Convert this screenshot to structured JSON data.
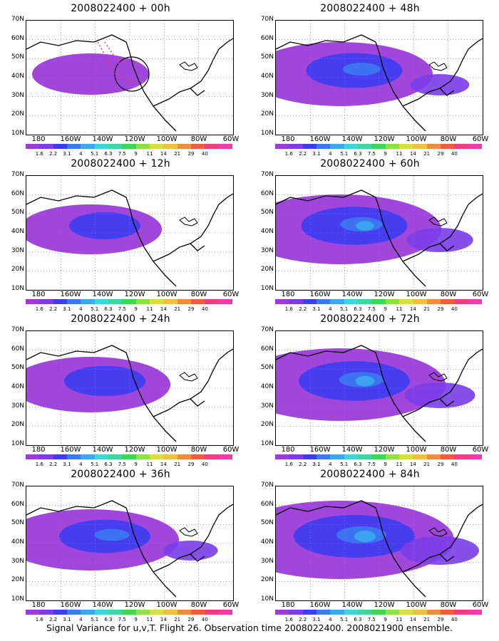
{
  "panels": [
    {
      "title": "2008022400 + 00h",
      "intensity": 0.35,
      "marker": true
    },
    {
      "title": "2008022400 + 48h",
      "intensity": 0.75,
      "marker": false
    },
    {
      "title": "2008022400 + 12h",
      "intensity": 0.5,
      "marker": false
    },
    {
      "title": "2008022400 + 60h",
      "intensity": 0.85,
      "marker": false
    },
    {
      "title": "2008022400 + 24h",
      "intensity": 0.6,
      "marker": false
    },
    {
      "title": "2008022400 + 72h",
      "intensity": 0.9,
      "marker": false
    },
    {
      "title": "2008022400 + 36h",
      "intensity": 0.7,
      "marker": false
    },
    {
      "title": "2008022400 + 84h",
      "intensity": 1.0,
      "marker": false
    }
  ],
  "lat_labels": [
    "70N",
    "60N",
    "50N",
    "40N",
    "30N",
    "20N",
    "10N"
  ],
  "lon_labels": [
    "180",
    "160W",
    "140W",
    "120W",
    "100W",
    "80W",
    "60W"
  ],
  "colorbar": {
    "colors": [
      "#9c3cd8",
      "#7a3ce8",
      "#3c3cf0",
      "#3c78f0",
      "#3ca8f0",
      "#3cd8d8",
      "#3cd8a0",
      "#3cd850",
      "#90e040",
      "#d8e040",
      "#f0c040",
      "#f08c40",
      "#f05c40",
      "#f03c80",
      "#f03ca8"
    ],
    "values": [
      "1.6",
      "2.2",
      "3.1",
      "4",
      "5.1",
      "6.3",
      "7.5",
      "9",
      "11",
      "14",
      "21",
      "29",
      "40"
    ]
  },
  "caption": "Signal Variance for u,v,T. Flight 26. Observation time 2008022400. 2008021900 ensemble."
}
